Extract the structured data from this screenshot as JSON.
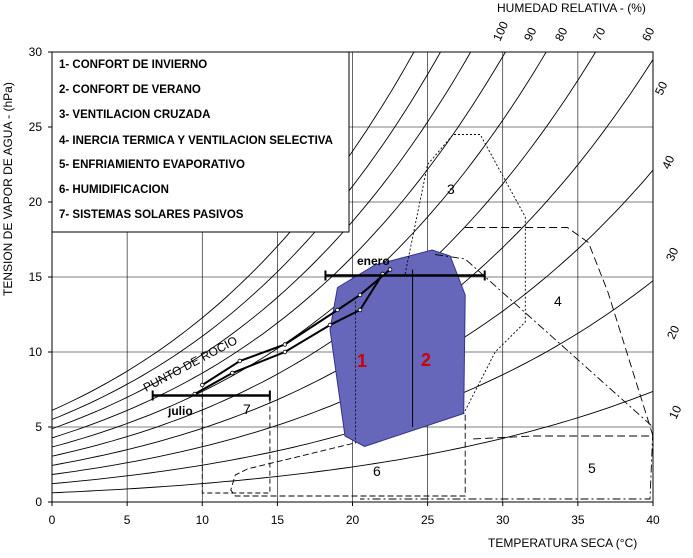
{
  "chart_data": {
    "type": "line",
    "subtitle": "HUMEDAD RELATIVA - (%)",
    "xlabel": "TEMPERATURA SECA (°C)",
    "ylabel": "TENSION DE VAPOR DE AGUA - (hPa)",
    "xlim": [
      0,
      40
    ],
    "ylim": [
      0,
      30
    ],
    "x_ticks": [
      0,
      5,
      10,
      15,
      20,
      25,
      30,
      35,
      40
    ],
    "y_ticks": [
      0,
      5,
      10,
      15,
      20,
      25,
      30
    ],
    "grid": true,
    "legend_items": [
      "1- CONFORT DE INVIERNO",
      "2- CONFORT DE VERANO",
      "3- VENTILACION CRUZADA",
      "4- INERCIA TERMICA Y VENTILACION SELECTIVA",
      "5- ENFRIAMIENTO EVAPORATIVO",
      "6- HUMIDIFICACION",
      "7- SISTEMAS SOLARES PASIVOS"
    ],
    "rh_curves": [
      100,
      90,
      80,
      70,
      60,
      50,
      40,
      30,
      20,
      10
    ],
    "rh_labels_top": [
      "100",
      "90",
      "80",
      "70",
      "60"
    ],
    "rh_labels_right": [
      "50",
      "40",
      "30",
      "20",
      "10"
    ],
    "annotations": {
      "dew_point": "PUNTO DE ROCIO",
      "january": "enero",
      "july": "julio"
    },
    "zone_labels": [
      "1",
      "2",
      "3",
      "4",
      "5",
      "6",
      "7"
    ],
    "series": [
      {
        "x": [
          10,
          12.5,
          15.5,
          19,
          20.5,
          22.5
        ],
        "y": [
          7.8,
          9.4,
          10.5,
          12.8,
          13.8,
          15.5
        ]
      },
      {
        "x": [
          9.5,
          12,
          15.5,
          18.5,
          20.5,
          22
        ],
        "y": [
          7.2,
          8.6,
          10,
          11.8,
          12.8,
          15.2
        ]
      },
      {
        "x": [
          6.7,
          14.5
        ],
        "y": [
          7.1,
          7.1
        ]
      },
      {
        "x": [
          18.2,
          28.8
        ],
        "y": [
          15.1,
          15.1
        ]
      }
    ],
    "zone1_color": "#6666bb",
    "zone1_edge": "#333388",
    "zone_label_color": "#cc0000"
  }
}
